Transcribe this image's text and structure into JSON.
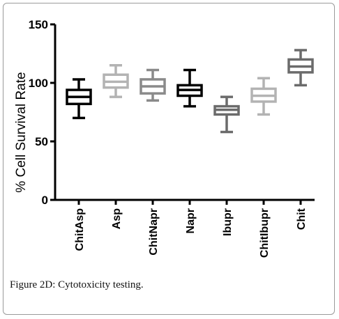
{
  "chart_data": {
    "type": "box",
    "title": "",
    "xlabel": "",
    "ylabel": "% Cell Survival Rate",
    "ylim": [
      0,
      150
    ],
    "yticks": [
      0,
      50,
      100,
      150
    ],
    "grid": false,
    "legend": "none",
    "categories": [
      "ChitAsp",
      "Asp",
      "ChitNapr",
      "Napr",
      "Ibupr",
      "ChitIbupr",
      "Chit"
    ],
    "boxes": [
      {
        "category": "ChitAsp",
        "min": 70,
        "q1": 82,
        "median": 88,
        "q3": 94,
        "max": 103,
        "color": "#000000"
      },
      {
        "category": "Asp",
        "min": 88,
        "q1": 96,
        "median": 101,
        "q3": 107,
        "max": 115,
        "color": "#b3b3b3"
      },
      {
        "category": "ChitNapr",
        "min": 85,
        "q1": 91,
        "median": 97,
        "q3": 103,
        "max": 111,
        "color": "#8a8a8a"
      },
      {
        "category": "Napr",
        "min": 80,
        "q1": 89,
        "median": 94,
        "q3": 98,
        "max": 111,
        "color": "#000000"
      },
      {
        "category": "Ibupr",
        "min": 58,
        "q1": 73,
        "median": 77,
        "q3": 80,
        "max": 88,
        "color": "#6b6b6b"
      },
      {
        "category": "ChitIbupr",
        "min": 73,
        "q1": 84,
        "median": 89,
        "q3": 95,
        "max": 104,
        "color": "#b3b3b3"
      },
      {
        "category": "Chit",
        "min": 98,
        "q1": 109,
        "median": 114,
        "q3": 120,
        "max": 128,
        "color": "#6b6b6b"
      }
    ]
  },
  "caption": "Figure 2D: Cytotoxicity testing."
}
